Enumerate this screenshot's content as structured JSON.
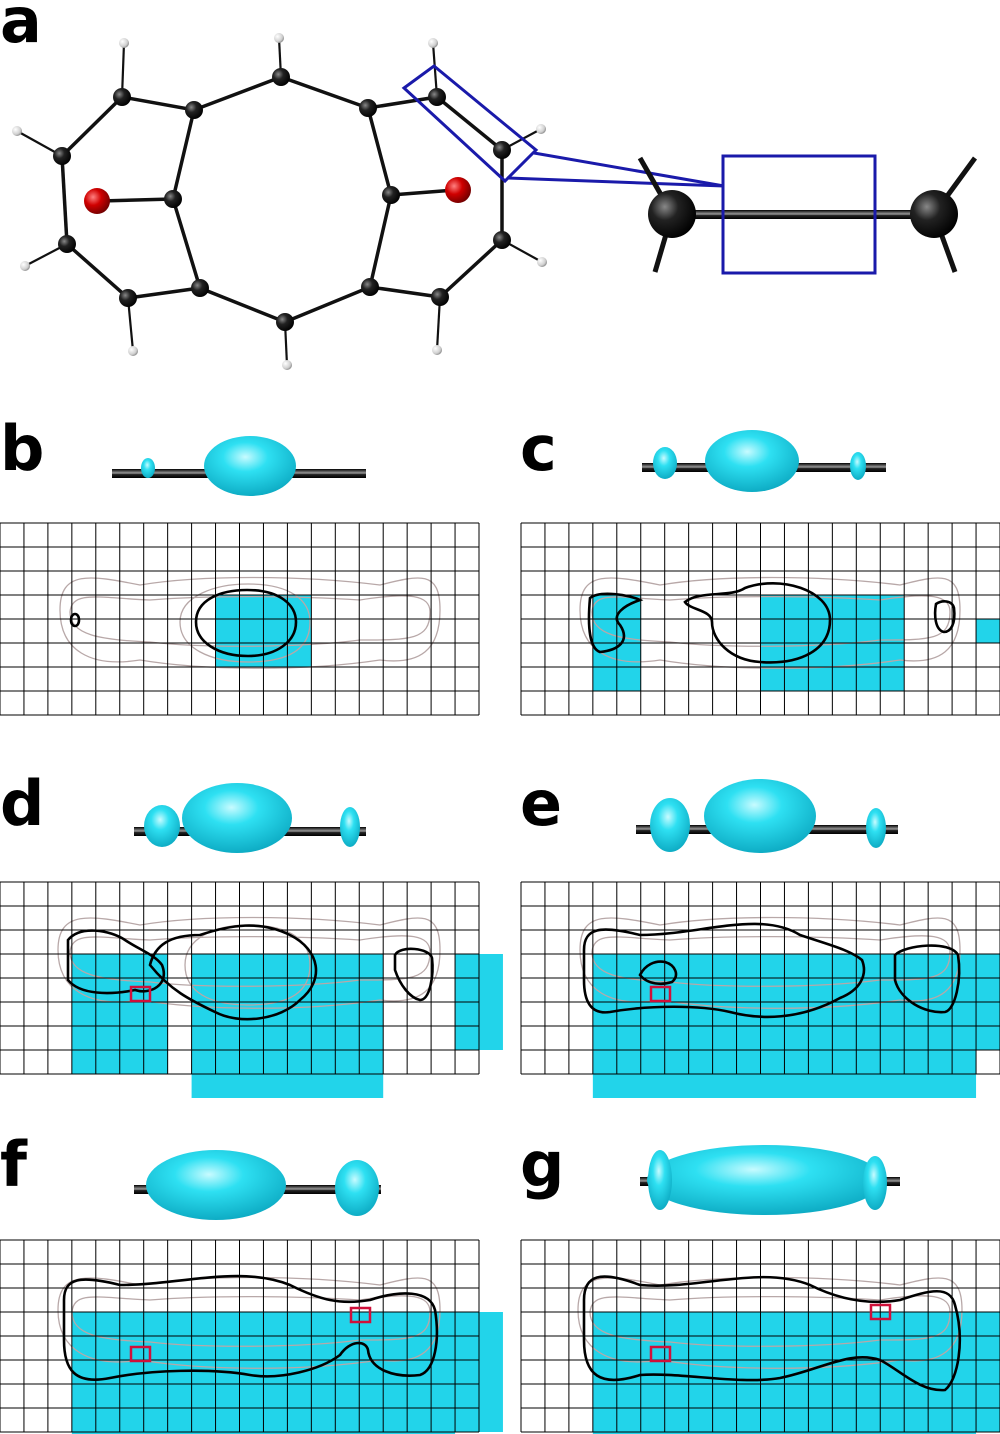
{
  "panels": [
    {
      "label": "a"
    },
    {
      "label": "b"
    },
    {
      "label": "c"
    },
    {
      "label": "d"
    },
    {
      "label": "e"
    },
    {
      "label": "f"
    },
    {
      "label": "g"
    }
  ],
  "colors": {
    "carbon": "#111111",
    "oxygen": "#cc0000",
    "hydrogen": "#dddddd",
    "highlight_box": "#1a1aaa",
    "isosurface": "#22d4ea",
    "contour_bold": "#000000",
    "contour_thin": "#b8a8a8",
    "grid_line": "#000000",
    "critical_cell": "#d0103a"
  },
  "grid": {
    "columns": 20,
    "rows": 8
  }
}
